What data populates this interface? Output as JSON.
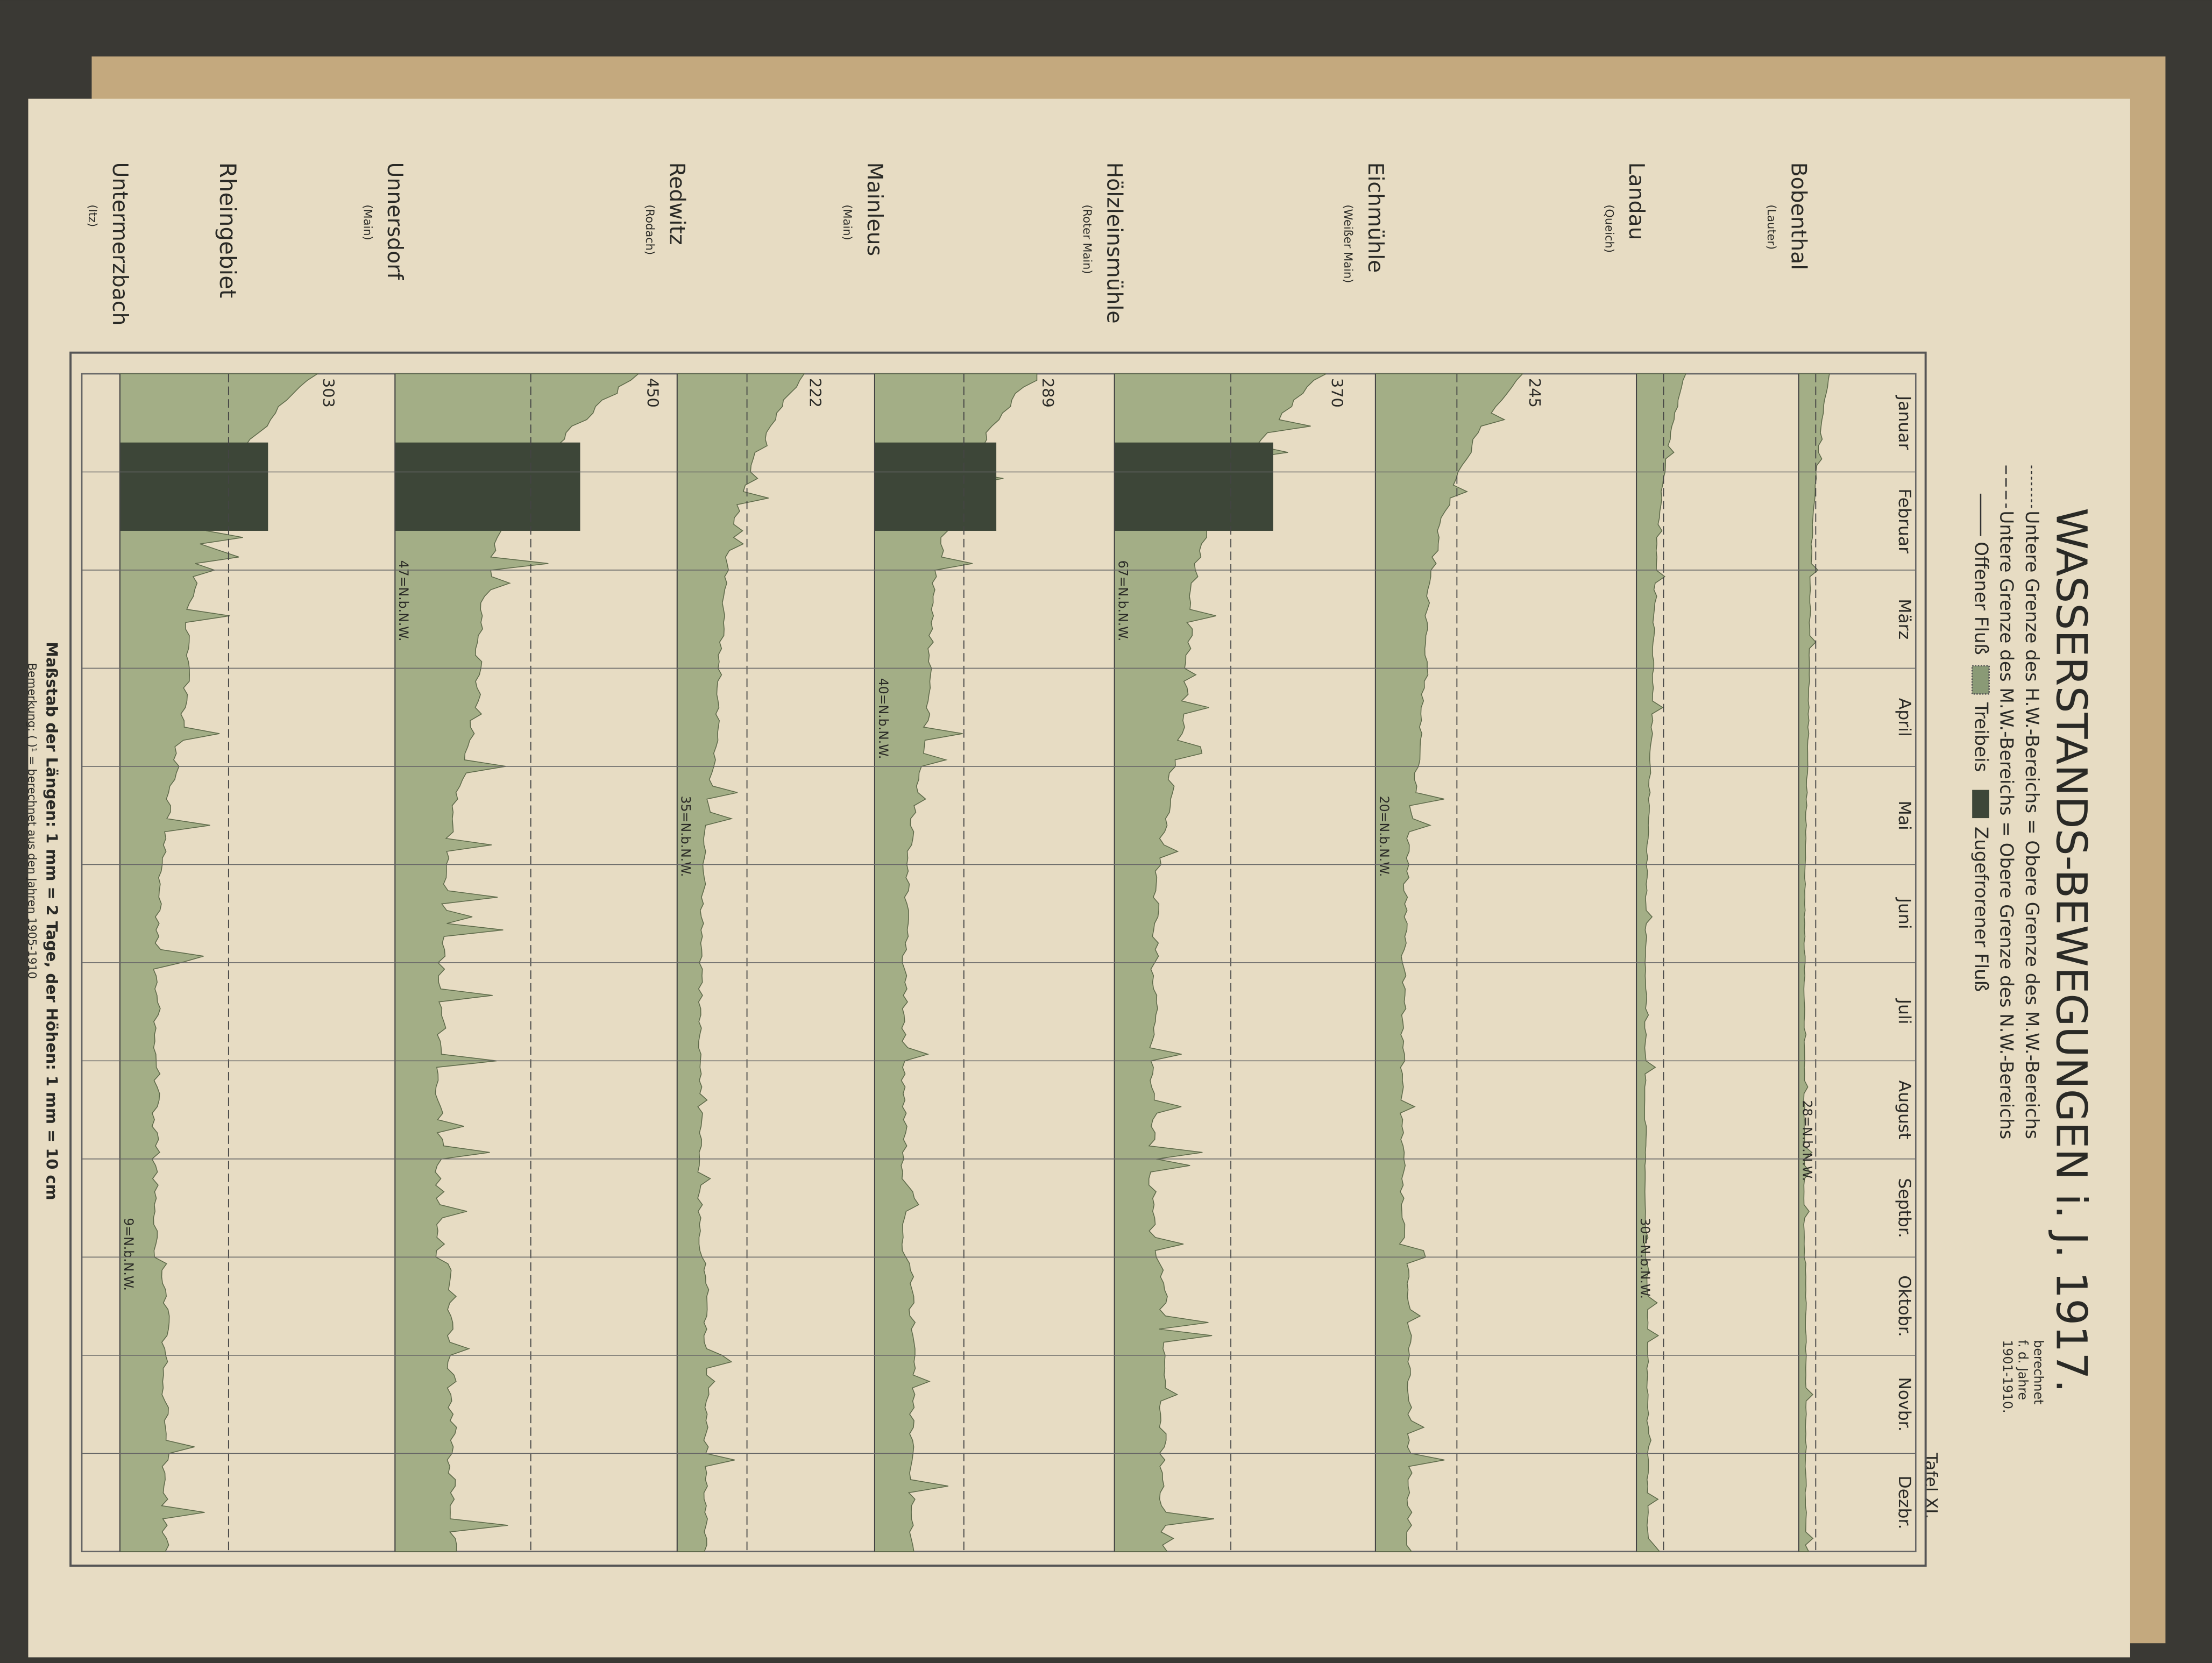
{
  "header": {
    "region": "Rheingebiet",
    "title": "WASSERSTANDS-BEWEGUNGEN i. J. 1917.",
    "plate": "Tafel XI."
  },
  "legend": {
    "lines": [
      "Untere Grenze des H.W.-Bereichs = Obere Grenze des M.W.-Bereichs",
      "Untere Grenze des M.W.-Bereichs = Obere Grenze des N.W.-Bereichs"
    ],
    "bracket": [
      "berechnet",
      "f. d. Jahre",
      "1901-1910."
    ],
    "items": [
      "Offener Fluß",
      "Treibeis",
      "Zugefrorener Fluß"
    ]
  },
  "months": [
    "Januar",
    "Februar",
    "März",
    "April",
    "Mai",
    "Juni",
    "Juli",
    "August",
    "Septbr.",
    "Oktobr.",
    "Novbr.",
    "Dezbr."
  ],
  "stations": [
    {
      "name": "Bobenthal",
      "river": "(Lauter)",
      "nw": "28=N.b.N.W."
    },
    {
      "name": "Landau",
      "river": "(Queich)",
      "nw": "30=N.b.N.W."
    },
    {
      "name": "Eichmühle",
      "river": "(Weißer Main)",
      "nw": "20=N.b.N.W.",
      "peak": "245"
    },
    {
      "name": "Hölzleinsmühle",
      "river": "(Roter Main)",
      "nw": "67=N.b.N.W.",
      "peak": "370"
    },
    {
      "name": "Mainleus",
      "river": "(Main)",
      "nw": "40=N.b.N.W.",
      "peak": "289"
    },
    {
      "name": "Redwitz",
      "river": "(Rodach)",
      "nw": "35=N.b.N.W.",
      "peak": "222"
    },
    {
      "name": "Unnersdorf",
      "river": "(Main)",
      "nw": "47=N.b.N.W.",
      "peak": "450"
    },
    {
      "name": "Untermerzbach",
      "river": "(Itz)",
      "nw": "9=N.b.N.W.",
      "peak": "303"
    }
  ],
  "footer": {
    "scale": "Maßstab der Längen: 1 mm = 2 Tage, der Höhen: 1 mm = 10 cm",
    "note": "Bemerkung: ( )¹ = berechnet aus den Jahren 1905-1910"
  }
}
